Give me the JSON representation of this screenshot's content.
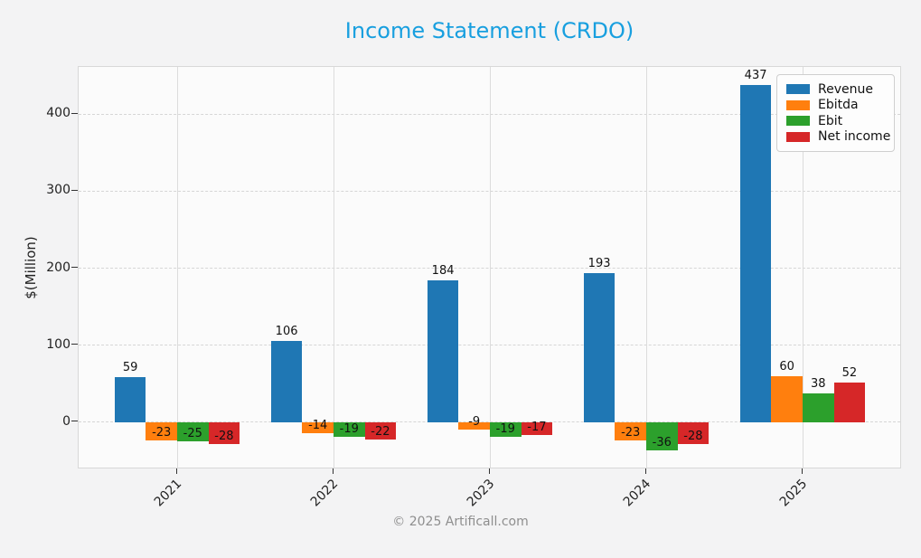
{
  "footer": "© 2025 Artificall.com",
  "chart_data": {
    "type": "bar",
    "title": "Income Statement (CRDO)",
    "title_color": "#189fdf",
    "ylabel": "$(Million)",
    "categories": [
      "2021",
      "2022",
      "2023",
      "2024",
      "2025"
    ],
    "series": [
      {
        "name": "Revenue",
        "color": "#1f77b4",
        "values": [
          59,
          106,
          184,
          193,
          437
        ]
      },
      {
        "name": "Ebitda",
        "color": "#ff7f0e",
        "values": [
          -23,
          -14,
          -9,
          -23,
          60
        ]
      },
      {
        "name": "Ebit",
        "color": "#2ca02c",
        "values": [
          -25,
          -19,
          -19,
          -36,
          38
        ]
      },
      {
        "name": "Net income",
        "color": "#d62728",
        "values": [
          -28,
          -22,
          -17,
          -28,
          52
        ]
      }
    ],
    "yticks": [
      0,
      100,
      200,
      300,
      400
    ],
    "ylim": [
      -61,
      461
    ],
    "grid": true,
    "bar_labels": true,
    "legend_position": "top-right"
  }
}
